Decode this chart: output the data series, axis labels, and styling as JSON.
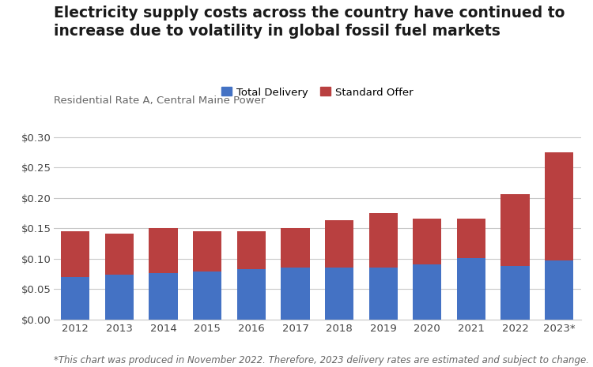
{
  "title": "Electricity supply costs across the country have continued to\nincrease due to volatility in global fossil fuel markets",
  "subtitle": "Residential Rate A, Central Maine Power",
  "footnote": "*This chart was produced in November 2022. Therefore, 2023 delivery rates are estimated and subject to change.",
  "years": [
    "2012",
    "2013",
    "2014",
    "2015",
    "2016",
    "2017",
    "2018",
    "2019",
    "2020",
    "2021",
    "2022",
    "2023*"
  ],
  "total_delivery": [
    0.07,
    0.073,
    0.076,
    0.078,
    0.082,
    0.085,
    0.085,
    0.085,
    0.09,
    0.101,
    0.088,
    0.097
  ],
  "standard_offer": [
    0.075,
    0.068,
    0.074,
    0.067,
    0.063,
    0.065,
    0.078,
    0.09,
    0.075,
    0.065,
    0.118,
    0.178
  ],
  "delivery_color": "#4472C4",
  "standard_offer_color": "#B94040",
  "background_color": "#FFFFFF",
  "grid_color": "#C8C8C8",
  "ylim": [
    0,
    0.32
  ],
  "yticks": [
    0.0,
    0.05,
    0.1,
    0.15,
    0.2,
    0.25,
    0.3
  ],
  "title_fontsize": 13.5,
  "subtitle_fontsize": 9.5,
  "legend_fontsize": 9.5,
  "tick_fontsize": 9.5,
  "footnote_fontsize": 8.5
}
